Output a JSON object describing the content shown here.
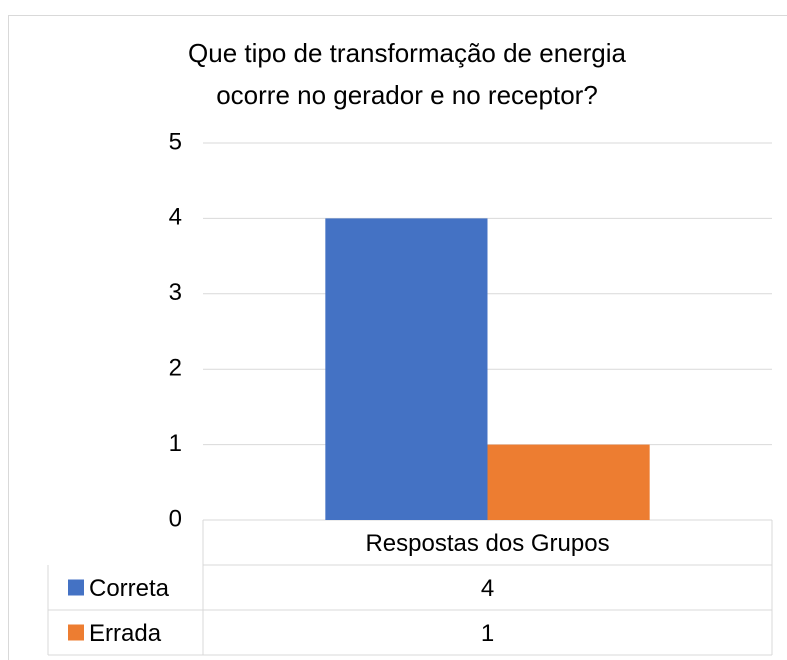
{
  "chart_data": {
    "type": "bar",
    "title": [
      "Que tipo de transformação de energia",
      "ocorre no gerador e no receptor?"
    ],
    "categories": [
      "Respostas dos Grupos"
    ],
    "series": [
      {
        "name": "Correta",
        "color": "#4472c4",
        "values": [
          4
        ]
      },
      {
        "name": "Errada",
        "color": "#ed7d31",
        "values": [
          1
        ]
      }
    ],
    "ylim": [
      0,
      5
    ],
    "yticks": [
      0,
      1,
      2,
      3,
      4,
      5
    ],
    "grid": true,
    "data_table": true
  }
}
